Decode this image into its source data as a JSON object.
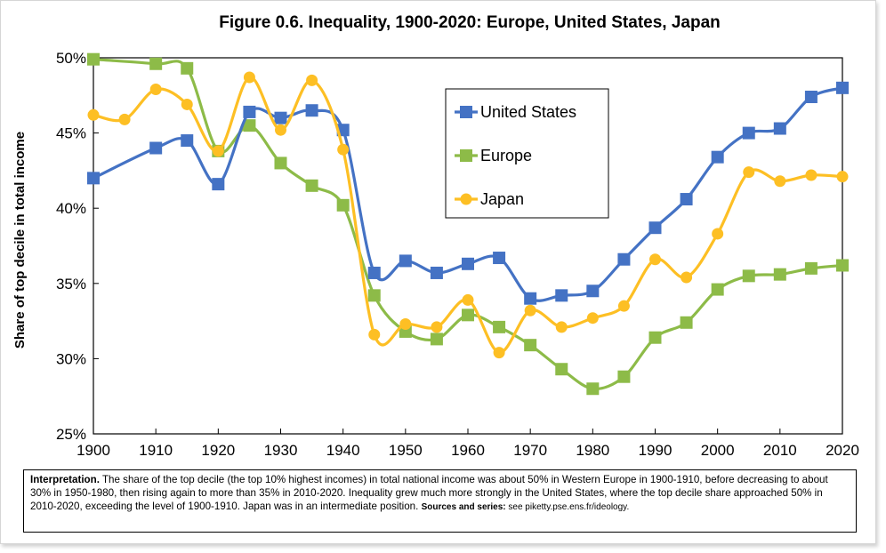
{
  "chart_data": {
    "type": "line",
    "title": "Figure 0.6. Inequality, 1900-2020: Europe, United States, Japan",
    "xlabel": "",
    "ylabel": "Share of top decile in total income",
    "xlim": [
      1900,
      2020
    ],
    "ylim": [
      25,
      50
    ],
    "x_ticks": [
      "1900",
      "1910",
      "1920",
      "1930",
      "1940",
      "1950",
      "1960",
      "1970",
      "1980",
      "1990",
      "2000",
      "2010",
      "2020"
    ],
    "y_ticks": [
      "25%",
      "30%",
      "35%",
      "40%",
      "45%",
      "50%"
    ],
    "grid": false,
    "legend_position": "top-center",
    "series": [
      {
        "name": "United States",
        "color": "#4472C4",
        "marker": "square",
        "x": [
          1900,
          1910,
          1915,
          1920,
          1925,
          1930,
          1935,
          1940,
          1945,
          1950,
          1955,
          1960,
          1965,
          1970,
          1975,
          1980,
          1985,
          1990,
          1995,
          2000,
          2005,
          2010,
          2015,
          2020
        ],
        "y": [
          42.0,
          44.0,
          44.5,
          41.6,
          46.4,
          46.0,
          46.5,
          45.2,
          35.7,
          36.5,
          35.7,
          36.3,
          36.7,
          34.0,
          34.2,
          34.5,
          36.6,
          38.7,
          40.6,
          43.4,
          45.0,
          45.3,
          47.4,
          48.0
        ]
      },
      {
        "name": "Europe",
        "color": "#8DBB48",
        "marker": "square",
        "x": [
          1900,
          1910,
          1915,
          1920,
          1925,
          1930,
          1935,
          1940,
          1945,
          1950,
          1955,
          1960,
          1965,
          1970,
          1975,
          1980,
          1985,
          1990,
          1995,
          2000,
          2005,
          2010,
          2015,
          2020
        ],
        "y": [
          49.9,
          49.6,
          49.3,
          43.8,
          45.5,
          43.0,
          41.5,
          40.2,
          34.2,
          31.8,
          31.3,
          32.9,
          32.1,
          30.9,
          29.3,
          28.0,
          28.8,
          31.4,
          32.4,
          34.6,
          35.5,
          35.6,
          36.0,
          36.2
        ]
      },
      {
        "name": "Japan",
        "color": "#FDBF24",
        "marker": "circle",
        "x": [
          1900,
          1905,
          1910,
          1915,
          1920,
          1925,
          1930,
          1935,
          1940,
          1945,
          1950,
          1955,
          1960,
          1965,
          1970,
          1975,
          1980,
          1985,
          1990,
          1995,
          2000,
          2005,
          2010,
          2015,
          2020
        ],
        "y": [
          46.2,
          45.9,
          47.9,
          46.9,
          43.8,
          48.7,
          45.2,
          48.5,
          43.9,
          31.6,
          32.3,
          32.1,
          33.9,
          30.4,
          33.2,
          32.1,
          32.7,
          33.5,
          36.6,
          35.4,
          38.3,
          42.4,
          41.8,
          42.2,
          42.1
        ]
      }
    ]
  },
  "note": {
    "label": "Interpretation.",
    "text": " The share of the top decile (the top 10% highest incomes) in total national income was about 50% in Western Europe in 1900-1910, before decreasing to about 30% in 1950-1980, then rising again to more than 35% in 2010-2020. Inequality grew much more strongly in the United States, where the top decile share approached 50% in 2010-2020, exceeding the level of 1900-1910. Japan was in an intermediate position. ",
    "sources_label": "Sources and series:",
    "sources_text": " see piketty.pse.ens.fr/ideology."
  }
}
